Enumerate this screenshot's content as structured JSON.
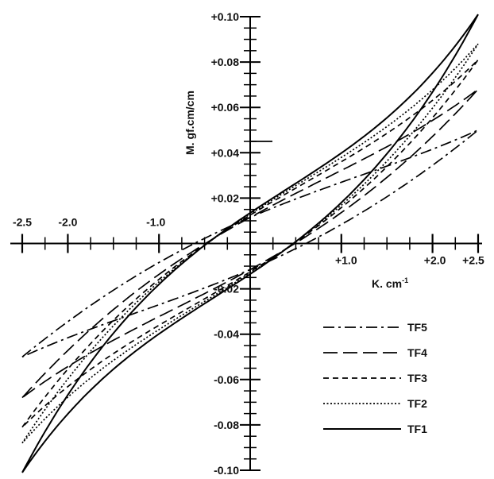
{
  "chart_data": {
    "type": "line",
    "title": "",
    "xlabel": "K. cm",
    "xlabel_sup": "-1",
    "ylabel": "M. gf.cm/cm",
    "xlim": [
      -2.5,
      2.5
    ],
    "ylim": [
      -0.1,
      0.1
    ],
    "x_tick_labels": [
      {
        "value": -2.5,
        "label": "-2.5"
      },
      {
        "value": -2.0,
        "label": "-2.0"
      },
      {
        "value": -1.0,
        "label": "-1.0"
      },
      {
        "value": 1.0,
        "label": "+1.0"
      },
      {
        "value": 2.0,
        "label": "+2.0"
      },
      {
        "value": 2.5,
        "label": "+2.5"
      }
    ],
    "y_tick_labels": [
      {
        "value": 0.1,
        "label": "+0.10"
      },
      {
        "value": 0.08,
        "label": "+0.08"
      },
      {
        "value": 0.06,
        "label": "+0.06"
      },
      {
        "value": 0.04,
        "label": "+0.04"
      },
      {
        "value": 0.02,
        "label": "+0.02"
      },
      {
        "value": -0.02,
        "label": "-0.02"
      },
      {
        "value": -0.04,
        "label": "-0.04"
      },
      {
        "value": -0.06,
        "label": "-0.06"
      },
      {
        "value": -0.08,
        "label": "-0.08"
      },
      {
        "value": -0.1,
        "label": "-0.10"
      }
    ],
    "legend_position": "bottom-right",
    "grid": false,
    "series": [
      {
        "name": "TF5",
        "style": "dash-dot",
        "x_max": 2.5,
        "y_at_max": 0.05,
        "upper_offset": 0.01,
        "loop_half_width": 0.0115,
        "steepness": 0.55
      },
      {
        "name": "TF4",
        "style": "long-dash",
        "x_max": 2.5,
        "y_at_max": 0.068,
        "upper_offset": 0.01,
        "loop_half_width": 0.0115,
        "steepness": 0.75
      },
      {
        "name": "TF3",
        "style": "short-dash",
        "x_max": 2.5,
        "y_at_max": 0.081,
        "upper_offset": 0.01,
        "loop_half_width": 0.0125,
        "steepness": 0.95
      },
      {
        "name": "TF2",
        "style": "dotted",
        "x_max": 2.5,
        "y_at_max": 0.088,
        "upper_offset": 0.011,
        "loop_half_width": 0.013,
        "steepness": 1.05
      },
      {
        "name": "TF1",
        "style": "solid",
        "x_max": 2.5,
        "y_at_max": 0.101,
        "upper_offset": 0.016,
        "loop_half_width": 0.0135,
        "steepness": 1.35
      }
    ]
  }
}
